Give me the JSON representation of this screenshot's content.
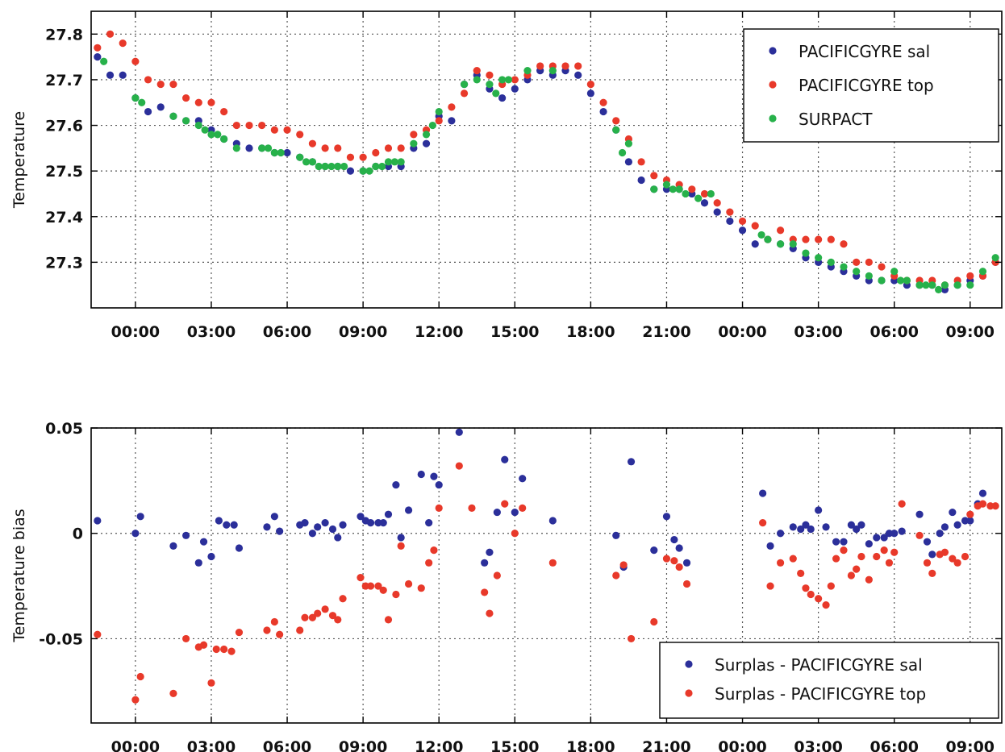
{
  "chart_data": [
    {
      "type": "scatter",
      "ylabel": "Temperature",
      "ylim": [
        27.2,
        27.85
      ],
      "yticks": [
        27.3,
        27.4,
        27.5,
        27.6,
        27.7,
        27.8
      ],
      "xlim_hours": [
        -1.75,
        34.25
      ],
      "x_tick_hours": [
        0,
        3,
        6,
        9,
        12,
        15,
        18,
        21,
        24,
        27,
        30,
        33
      ],
      "x_tick_labels": [
        "00:00",
        "03:00",
        "06:00",
        "09:00",
        "12:00",
        "15:00",
        "18:00",
        "21:00",
        "00:00",
        "03:00",
        "06:00",
        "09:00"
      ],
      "grid": true,
      "legend_position": "top-right",
      "series": [
        {
          "name": "PACIFICGYRE sal",
          "color": "#2b2f9a",
          "x": [
            -1.5,
            -1,
            -0.5,
            0,
            0.5,
            1,
            1.5,
            2,
            2.5,
            3,
            3.5,
            4,
            4.5,
            5,
            5.5,
            6,
            6.5,
            7,
            7.5,
            8,
            8.5,
            9,
            9.5,
            10,
            10.5,
            11,
            11.5,
            12,
            12.5,
            13,
            13.5,
            14,
            14.5,
            15,
            15.5,
            16,
            16.5,
            17,
            17.5,
            18,
            18.5,
            19,
            19.5,
            20,
            20.5,
            21,
            21.5,
            22,
            22.5,
            23,
            23.5,
            24,
            24.5,
            25,
            25.5,
            26,
            26.5,
            27,
            27.5,
            28,
            28.5,
            29,
            29.5,
            30,
            30.5,
            31,
            31.5,
            32,
            32.5,
            33,
            33.5,
            34
          ],
          "y": [
            27.75,
            27.71,
            27.71,
            27.66,
            27.63,
            27.64,
            27.62,
            27.61,
            27.61,
            27.59,
            27.57,
            27.56,
            27.55,
            27.55,
            27.54,
            27.54,
            27.53,
            27.52,
            27.51,
            27.51,
            27.5,
            27.5,
            27.51,
            27.51,
            27.51,
            27.55,
            27.56,
            27.62,
            27.61,
            27.69,
            27.71,
            27.68,
            27.66,
            27.68,
            27.7,
            27.72,
            27.71,
            27.72,
            27.71,
            27.67,
            27.63,
            27.59,
            27.52,
            27.48,
            27.46,
            27.46,
            27.46,
            27.45,
            27.43,
            27.41,
            27.39,
            27.37,
            27.34,
            27.35,
            27.34,
            27.33,
            27.31,
            27.3,
            27.29,
            27.28,
            27.27,
            27.26,
            27.26,
            27.26,
            27.25,
            27.25,
            27.25,
            27.24,
            27.25,
            27.26,
            27.27,
            27.3
          ]
        },
        {
          "name": "PACIFICGYRE top",
          "color": "#e8392a",
          "x": [
            -1.5,
            -1,
            -0.5,
            0,
            0.5,
            1,
            1.5,
            2,
            2.5,
            3,
            3.5,
            4,
            4.5,
            5,
            5.5,
            6,
            6.5,
            7,
            7.5,
            8,
            8.5,
            9,
            9.5,
            10,
            10.5,
            11,
            11.5,
            12,
            12.5,
            13,
            13.5,
            14,
            14.5,
            15,
            15.5,
            16,
            16.5,
            17,
            17.5,
            18,
            18.5,
            19,
            19.5,
            20,
            20.5,
            21,
            21.5,
            22,
            22.5,
            23,
            23.5,
            24,
            24.5,
            25,
            25.5,
            26,
            26.5,
            27,
            27.5,
            28,
            28.5,
            29,
            29.5,
            30,
            30.5,
            31,
            31.5,
            32,
            32.5,
            33,
            33.5,
            34
          ],
          "y": [
            27.77,
            27.8,
            27.78,
            27.74,
            27.7,
            27.69,
            27.69,
            27.66,
            27.65,
            27.65,
            27.63,
            27.6,
            27.6,
            27.6,
            27.59,
            27.59,
            27.58,
            27.56,
            27.55,
            27.55,
            27.53,
            27.53,
            27.54,
            27.55,
            27.55,
            27.58,
            27.59,
            27.61,
            27.64,
            27.67,
            27.72,
            27.71,
            27.69,
            27.7,
            27.71,
            27.73,
            27.73,
            27.73,
            27.73,
            27.69,
            27.65,
            27.61,
            27.57,
            27.52,
            27.49,
            27.48,
            27.47,
            27.46,
            27.45,
            27.43,
            27.41,
            27.39,
            27.38,
            27.35,
            27.37,
            27.35,
            27.35,
            27.35,
            27.35,
            27.34,
            27.3,
            27.3,
            27.29,
            27.27,
            27.26,
            27.26,
            27.26,
            27.25,
            27.26,
            27.27,
            27.27,
            27.3
          ]
        },
        {
          "name": "SURPACT",
          "color": "#27b14a",
          "x": [
            -1.25,
            0,
            0.25,
            1.5,
            2,
            2.5,
            2.75,
            3,
            3.25,
            3.5,
            4,
            5,
            5.25,
            5.5,
            5.75,
            6.5,
            6.75,
            7,
            7.25,
            7.5,
            7.75,
            8,
            8.25,
            9,
            9.25,
            9.5,
            9.75,
            10,
            10.25,
            10.5,
            11,
            11.5,
            11.75,
            12,
            13,
            13.5,
            14,
            14.25,
            14.5,
            14.75,
            15.5,
            16.5,
            19,
            19.25,
            19.5,
            20.5,
            21,
            21.25,
            21.5,
            21.75,
            22.25,
            22.75,
            24.75,
            25,
            25.5,
            26,
            26.5,
            27,
            27.5,
            28,
            28.5,
            29,
            29.5,
            30,
            30.25,
            30.5,
            31,
            31.25,
            31.5,
            31.75,
            32,
            32.5,
            33,
            33.5,
            34
          ],
          "y": [
            27.74,
            27.66,
            27.65,
            27.62,
            27.61,
            27.6,
            27.59,
            27.58,
            27.58,
            27.57,
            27.55,
            27.55,
            27.55,
            27.54,
            27.54,
            27.53,
            27.52,
            27.52,
            27.51,
            27.51,
            27.51,
            27.51,
            27.51,
            27.5,
            27.5,
            27.51,
            27.51,
            27.52,
            27.52,
            27.52,
            27.56,
            27.58,
            27.6,
            27.63,
            27.69,
            27.7,
            27.69,
            27.67,
            27.7,
            27.7,
            27.72,
            27.72,
            27.59,
            27.54,
            27.56,
            27.46,
            27.47,
            27.46,
            27.46,
            27.45,
            27.44,
            27.45,
            27.36,
            27.35,
            27.34,
            27.34,
            27.32,
            27.31,
            27.3,
            27.29,
            27.28,
            27.27,
            27.26,
            27.28,
            27.26,
            27.26,
            27.25,
            27.25,
            27.25,
            27.24,
            27.25,
            27.25,
            27.25,
            27.28,
            27.31
          ]
        }
      ]
    },
    {
      "type": "scatter",
      "ylabel": "Temperature bias",
      "ylim": [
        -0.09,
        0.05
      ],
      "yticks": [
        -0.05,
        0,
        0.05
      ],
      "ytick_labels": [
        "-0.05",
        "0",
        "0.05"
      ],
      "xlim_hours": [
        -1.75,
        34.25
      ],
      "x_tick_hours": [
        0,
        3,
        6,
        9,
        12,
        15,
        18,
        21,
        24,
        27,
        30,
        33
      ],
      "x_tick_labels": [
        "00:00",
        "03:00",
        "06:00",
        "09:00",
        "12:00",
        "15:00",
        "18:00",
        "21:00",
        "00:00",
        "03:00",
        "06:00",
        "09:00"
      ],
      "grid": true,
      "legend_position": "bottom-right",
      "series": [
        {
          "name": "Surplas - PACIFICGYRE sal",
          "color": "#2b2f9a",
          "x": [
            -1.5,
            0,
            0.2,
            1.5,
            2,
            2.5,
            2.7,
            3,
            3.3,
            3.6,
            3.9,
            4.1,
            5.2,
            5.5,
            5.7,
            6.5,
            6.7,
            7,
            7.2,
            7.5,
            7.8,
            8,
            8.2,
            8.9,
            9.1,
            9.3,
            9.6,
            9.8,
            10,
            10.3,
            10.5,
            10.8,
            11.3,
            11.6,
            11.8,
            12,
            12.8,
            13.8,
            14,
            14.3,
            14.6,
            15,
            15.3,
            16.5,
            19,
            19.3,
            19.6,
            20.5,
            21,
            21.3,
            21.5,
            21.8,
            24.8,
            25.1,
            25.5,
            26,
            26.3,
            26.5,
            26.7,
            27,
            27.3,
            27.7,
            28,
            28.3,
            28.5,
            28.7,
            29,
            29.3,
            29.6,
            29.8,
            30,
            30.3,
            31,
            31.3,
            31.5,
            31.8,
            32,
            32.3,
            32.5,
            32.8,
            33,
            33.3,
            33.5
          ],
          "y": [
            0.006,
            0.0,
            0.008,
            -0.006,
            -0.001,
            -0.014,
            -0.004,
            -0.011,
            0.006,
            0.004,
            0.004,
            -0.007,
            0.003,
            0.008,
            0.001,
            0.004,
            0.005,
            0.0,
            0.003,
            0.005,
            0.002,
            -0.002,
            0.004,
            0.008,
            0.006,
            0.005,
            0.005,
            0.005,
            0.009,
            0.023,
            -0.002,
            0.011,
            0.028,
            0.005,
            0.027,
            0.023,
            0.048,
            -0.014,
            -0.009,
            0.01,
            0.035,
            0.01,
            0.026,
            0.006,
            -0.001,
            -0.016,
            0.034,
            -0.008,
            0.008,
            -0.003,
            -0.007,
            -0.014,
            0.019,
            -0.006,
            0.0,
            0.003,
            0.002,
            0.004,
            0.002,
            0.011,
            0.003,
            -0.004,
            -0.004,
            0.004,
            0.002,
            0.004,
            -0.005,
            -0.002,
            -0.002,
            0.0,
            0.0,
            0.001,
            0.009,
            -0.004,
            -0.01,
            0.0,
            0.003,
            0.01,
            0.004,
            0.006,
            0.006,
            0.014,
            0.019
          ]
        },
        {
          "name": "Surplas - PACIFICGYRE top",
          "color": "#e8392a",
          "x": [
            -1.5,
            0,
            0.2,
            1.5,
            2,
            2.5,
            2.7,
            3,
            3.2,
            3.5,
            3.8,
            4.1,
            5.2,
            5.5,
            5.7,
            6.5,
            6.7,
            7,
            7.2,
            7.5,
            7.8,
            8,
            8.2,
            8.9,
            9.1,
            9.3,
            9.6,
            9.8,
            10,
            10.3,
            10.5,
            10.8,
            11.3,
            11.6,
            11.8,
            12,
            12.8,
            13.3,
            13.8,
            14,
            14.3,
            14.6,
            15,
            15.3,
            16.5,
            19,
            19.3,
            19.6,
            20.5,
            21,
            21.3,
            21.5,
            21.8,
            24.8,
            25.1,
            25.5,
            26,
            26.3,
            26.5,
            26.7,
            27,
            27.3,
            27.5,
            27.7,
            28,
            28.3,
            28.5,
            28.7,
            29,
            29.3,
            29.6,
            29.8,
            30,
            30.3,
            31,
            31.3,
            31.5,
            31.8,
            32,
            32.3,
            32.5,
            32.8,
            33,
            33.3,
            33.5,
            33.8,
            34
          ],
          "y": [
            -0.048,
            -0.079,
            -0.068,
            -0.076,
            -0.05,
            -0.054,
            -0.053,
            -0.071,
            -0.055,
            -0.055,
            -0.056,
            -0.047,
            -0.046,
            -0.042,
            -0.048,
            -0.046,
            -0.04,
            -0.04,
            -0.038,
            -0.036,
            -0.039,
            -0.041,
            -0.031,
            -0.021,
            -0.025,
            -0.025,
            -0.025,
            -0.027,
            -0.041,
            -0.029,
            -0.006,
            -0.024,
            -0.026,
            -0.014,
            -0.008,
            0.012,
            0.032,
            0.012,
            -0.028,
            -0.038,
            -0.02,
            0.014,
            0.0,
            0.012,
            -0.014,
            -0.02,
            -0.015,
            -0.05,
            -0.042,
            -0.012,
            -0.013,
            -0.016,
            -0.024,
            0.005,
            -0.025,
            -0.014,
            -0.012,
            -0.019,
            -0.026,
            -0.029,
            -0.031,
            -0.034,
            -0.025,
            -0.012,
            -0.008,
            -0.02,
            -0.017,
            -0.011,
            -0.022,
            -0.011,
            -0.008,
            -0.014,
            -0.009,
            0.014,
            -0.001,
            -0.014,
            -0.019,
            -0.01,
            -0.009,
            -0.012,
            -0.014,
            -0.011,
            0.009,
            0.013,
            0.014,
            0.013,
            0.013
          ]
        }
      ]
    }
  ]
}
